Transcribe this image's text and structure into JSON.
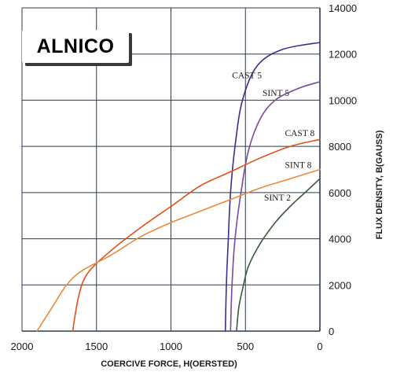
{
  "badge_text": "ALNICO",
  "chart_data": {
    "type": "line",
    "title": "",
    "xlabel": "COERCIVE FORCE, H(OERSTED)",
    "ylabel": "FLUX DENSITY, B(GAUSS)",
    "xlim": [
      2000,
      0
    ],
    "ylim": [
      0,
      14000
    ],
    "x_ticks": [
      2000,
      1500,
      1000,
      500,
      0
    ],
    "y_ticks": [
      0,
      2000,
      4000,
      6000,
      8000,
      10000,
      12000,
      14000
    ],
    "x_tick_labels": [
      "2000",
      "1500",
      "1000",
      "500",
      "0"
    ],
    "y_tick_labels": [
      "0",
      "2000",
      "4000",
      "6000",
      "8000",
      "10000",
      "12000",
      "14000"
    ],
    "x_axis_position": "bottom",
    "y_axis_position": "right",
    "grid": true,
    "colors": {
      "grid": "#2b3a4f",
      "text": "#1a1a1a",
      "cast5": "#3c2d8c",
      "sint5": "#7a4a9a",
      "cast8": "#e0501a",
      "sint8": "#e88a3a",
      "sint2": "#3c5a3c"
    },
    "series": [
      {
        "name": "CAST 5",
        "color": "#3c2d8c",
        "points": [
          [
            635,
            0
          ],
          [
            628,
            2000
          ],
          [
            615,
            4000
          ],
          [
            600,
            6000
          ],
          [
            570,
            8000
          ],
          [
            520,
            10000
          ],
          [
            420,
            11500
          ],
          [
            250,
            12200
          ],
          [
            0,
            12500
          ]
        ]
      },
      {
        "name": "SINT 5",
        "color": "#7a4a9a",
        "points": [
          [
            600,
            0
          ],
          [
            590,
            2000
          ],
          [
            570,
            4000
          ],
          [
            530,
            6000
          ],
          [
            480,
            7800
          ],
          [
            400,
            9200
          ],
          [
            300,
            10000
          ],
          [
            150,
            10500
          ],
          [
            0,
            10800
          ]
        ]
      },
      {
        "name": "CAST 8",
        "color": "#e0501a",
        "points": [
          [
            1660,
            0
          ],
          [
            1620,
            1500
          ],
          [
            1560,
            2500
          ],
          [
            1400,
            3500
          ],
          [
            1200,
            4500
          ],
          [
            1000,
            5400
          ],
          [
            800,
            6300
          ],
          [
            600,
            6900
          ],
          [
            400,
            7500
          ],
          [
            200,
            8000
          ],
          [
            0,
            8300
          ]
        ]
      },
      {
        "name": "SINT 8",
        "color": "#e88a3a",
        "points": [
          [
            1900,
            0
          ],
          [
            1800,
            1000
          ],
          [
            1700,
            2000
          ],
          [
            1600,
            2600
          ],
          [
            1400,
            3300
          ],
          [
            1200,
            4100
          ],
          [
            1000,
            4700
          ],
          [
            800,
            5200
          ],
          [
            600,
            5700
          ],
          [
            400,
            6200
          ],
          [
            200,
            6600
          ],
          [
            0,
            7000
          ]
        ]
      },
      {
        "name": "SINT 2",
        "color": "#3c5a3c",
        "points": [
          [
            560,
            0
          ],
          [
            545,
            1000
          ],
          [
            520,
            1800
          ],
          [
            480,
            2800
          ],
          [
            400,
            3800
          ],
          [
            300,
            4700
          ],
          [
            200,
            5400
          ],
          [
            100,
            6000
          ],
          [
            0,
            6600
          ]
        ]
      }
    ],
    "annotations": [
      {
        "text": "CAST 5",
        "x": 590,
        "y": 10950
      },
      {
        "text": "SINT 5",
        "x": 385,
        "y": 10180
      },
      {
        "text": "CAST 8",
        "x": 235,
        "y": 8450
      },
      {
        "text": "SINT 8",
        "x": 235,
        "y": 7070
      },
      {
        "text": "SINT 2",
        "x": 375,
        "y": 5650
      }
    ]
  }
}
